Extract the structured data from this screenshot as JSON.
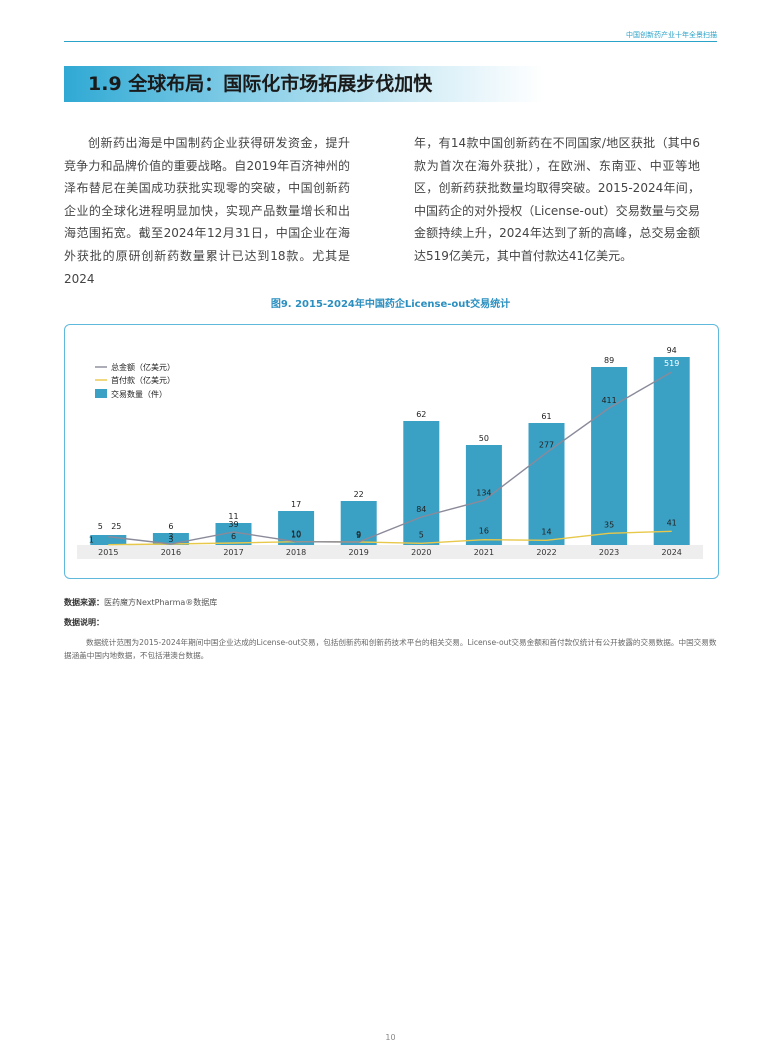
{
  "header": {
    "running_title": "中国创新药产业十年全景扫描"
  },
  "section": {
    "title": "1.9 全球布局：国际化市场拓展步伐加快"
  },
  "body": {
    "left_paragraph": "创新药出海是中国制药企业获得研发资金，提升竞争力和品牌价值的重要战略。自2019年百济神州的泽布替尼在美国成功获批实现零的突破，中国创新药企业的全球化进程明显加快，实现产品数量增长和出海范围拓宽。截至2024年12月31日，中国企业在海外获批的原研创新药数量累计已达到18款。尤其是2024",
    "right_paragraph": "年，有14款中国创新药在不同国家/地区获批（其中6款为首次在海外获批），在欧洲、东南亚、中亚等地区，创新药获批数量均取得突破。2015-2024年间，中国药企的对外授权（License-out）交易数量与交易金额持续上升，2024年达到了新的高峰，总交易金额达519亿美元，其中首付款达41亿美元。"
  },
  "figure": {
    "caption": "图9. 2015-2024年中国药企License-out交易统计"
  },
  "chart_data": {
    "type": "bar",
    "categories": [
      "2015",
      "2016",
      "2017",
      "2018",
      "2019",
      "2020",
      "2021",
      "2022",
      "2023",
      "2024"
    ],
    "series": [
      {
        "name": "交易数量（件）",
        "kind": "bar",
        "color": "#3aa0c4",
        "values": [
          5,
          6,
          11,
          17,
          22,
          62,
          50,
          61,
          89,
          94
        ]
      },
      {
        "name": "总金额（亿美元）",
        "kind": "line",
        "color": "#8a8a9a",
        "values": [
          25,
          3,
          39,
          10,
          9,
          84,
          134,
          277,
          411,
          519
        ]
      },
      {
        "name": "首付款（亿美元）",
        "kind": "line",
        "color": "#e8c84a",
        "values": [
          1,
          3,
          6,
          10,
          9,
          5,
          16,
          14,
          35,
          41
        ]
      }
    ],
    "bar_ylim": [
      0,
      100
    ],
    "line_ylim": [
      0,
      600
    ],
    "legend_position": "top-left",
    "grid": false
  },
  "source": {
    "label": "数据来源：",
    "text": "医药魔方NextPharma®数据库"
  },
  "notes": {
    "label": "数据说明：",
    "text": "数据统计范围为2015-2024年期间中国企业达成的License-out交易，包括创新药和创新药技术平台的相关交易。License-out交易金额和首付款仅统计有公开披露的交易数据。中国交易数据涵盖中国内地数据，不包括港澳台数据。"
  },
  "page": {
    "number": "10"
  }
}
